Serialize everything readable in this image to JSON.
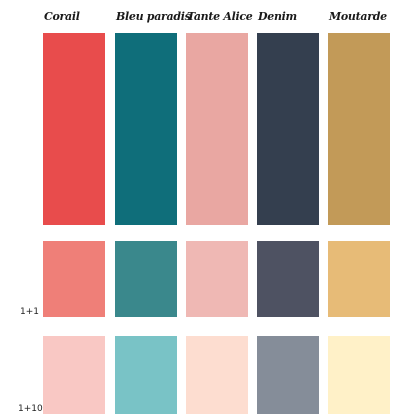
{
  "palette": {
    "columns": [
      {
        "name": "Corail",
        "main": "#E84C4C",
        "light": "#EF7F78",
        "lighter": "#F9C8C4"
      },
      {
        "name": "Bleu paradis",
        "main": "#0F6E7A",
        "light": "#3A888C",
        "lighter": "#79C3C6"
      },
      {
        "name": "Tante Alice",
        "main": "#E9A7A2",
        "light": "#EFB8B4",
        "lighter": "#FDDDD0"
      },
      {
        "name": "Denim",
        "main": "#343F4F",
        "light": "#4E5262",
        "lighter": "#858D99"
      },
      {
        "name": "Moutarde",
        "main": "#C29A58",
        "light": "#E7BB77",
        "lighter": "#FFF1C8"
      }
    ],
    "row_labels": {
      "light": "1+1",
      "lighter": "1+10"
    }
  }
}
